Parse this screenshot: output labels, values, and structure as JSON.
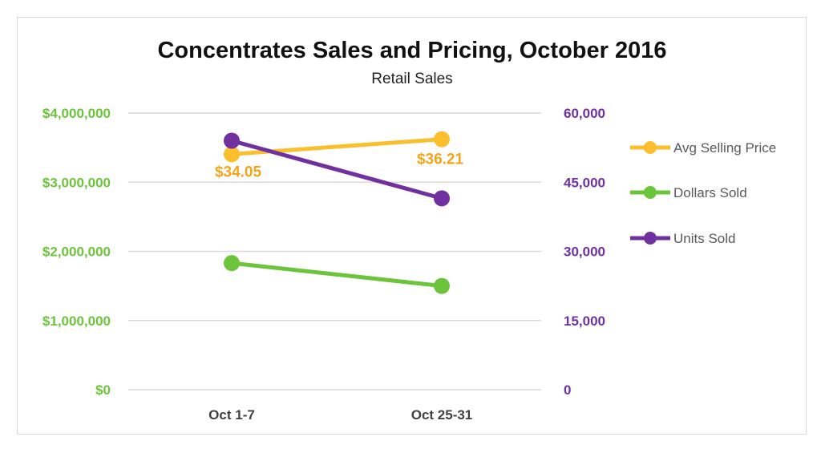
{
  "chart_data": {
    "type": "line",
    "title": "Concentrates Sales and Pricing, October 2016",
    "subtitle": "Retail Sales",
    "categories": [
      "Oct 1-7",
      "Oct 25-31"
    ],
    "y_left": {
      "ylim": [
        0,
        4000000
      ],
      "tick_values": [
        0,
        1000000,
        2000000,
        3000000,
        4000000
      ],
      "tick_labels": [
        "$0",
        "$1,000,000",
        "$2,000,000",
        "$3,000,000",
        "$4,000,000"
      ],
      "color": "#6cc43a"
    },
    "y_right": {
      "ylim": [
        0,
        60000
      ],
      "tick_values": [
        0,
        15000,
        30000,
        45000,
        60000
      ],
      "tick_labels": [
        "0",
        "15,000",
        "30,000",
        "45,000",
        "60,000"
      ],
      "color": "#7030a0"
    },
    "grid": true,
    "legend_position": "right",
    "series": [
      {
        "name": "Avg Selling Price",
        "axis": "price",
        "values": [
          34.05,
          36.21
        ],
        "data_labels": [
          "$34.05",
          "$36.21"
        ],
        "color": "#fbbf2d",
        "label_color": "#f2a51c"
      },
      {
        "name": "Dollars Sold",
        "axis": "left",
        "values": [
          1830000,
          1500000
        ],
        "color": "#6cc43a"
      },
      {
        "name": "Units Sold",
        "axis": "right",
        "values": [
          54000,
          41500
        ],
        "color": "#7030a0"
      }
    ],
    "price_axis_hidden": {
      "ylim": [
        0,
        40
      ]
    }
  }
}
